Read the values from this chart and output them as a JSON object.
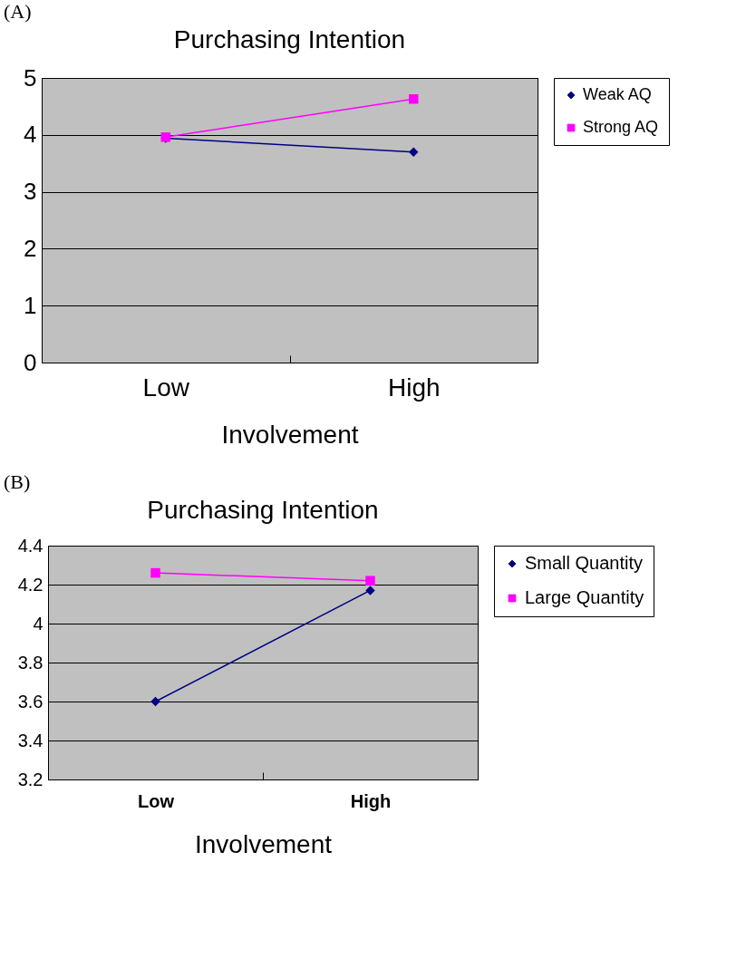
{
  "chart_data": [
    {
      "type": "line",
      "title": "Purchasing Intention",
      "xlabel": "Involvement",
      "annotations": [
        "(A)"
      ],
      "categories": [
        "Low",
        "High"
      ],
      "series": [
        {
          "name": "Weak AQ",
          "color": "#000080",
          "marker": "diamond",
          "values": [
            3.94,
            3.7
          ]
        },
        {
          "name": "Strong AQ",
          "color": "#ff00ff",
          "marker": "square",
          "values": [
            3.96,
            4.63
          ]
        }
      ],
      "ylim": [
        0,
        5
      ],
      "yticks": [
        0,
        1,
        2,
        3,
        4,
        5
      ],
      "grid": "y",
      "legend": "right"
    },
    {
      "type": "line",
      "title": "Purchasing Intention",
      "xlabel": "Involvement",
      "annotations": [
        "(B)"
      ],
      "categories": [
        "Low",
        "High"
      ],
      "series": [
        {
          "name": "Small Quantity",
          "color": "#000080",
          "marker": "diamond",
          "values": [
            3.6,
            4.17
          ]
        },
        {
          "name": "Large Quantity",
          "color": "#ff00ff",
          "marker": "square",
          "values": [
            4.26,
            4.22
          ]
        }
      ],
      "ylim": [
        3.2,
        4.4
      ],
      "yticks": [
        3.2,
        3.4,
        3.6,
        3.8,
        4,
        4.2,
        4.4
      ],
      "grid": "y",
      "legend": "right"
    }
  ]
}
